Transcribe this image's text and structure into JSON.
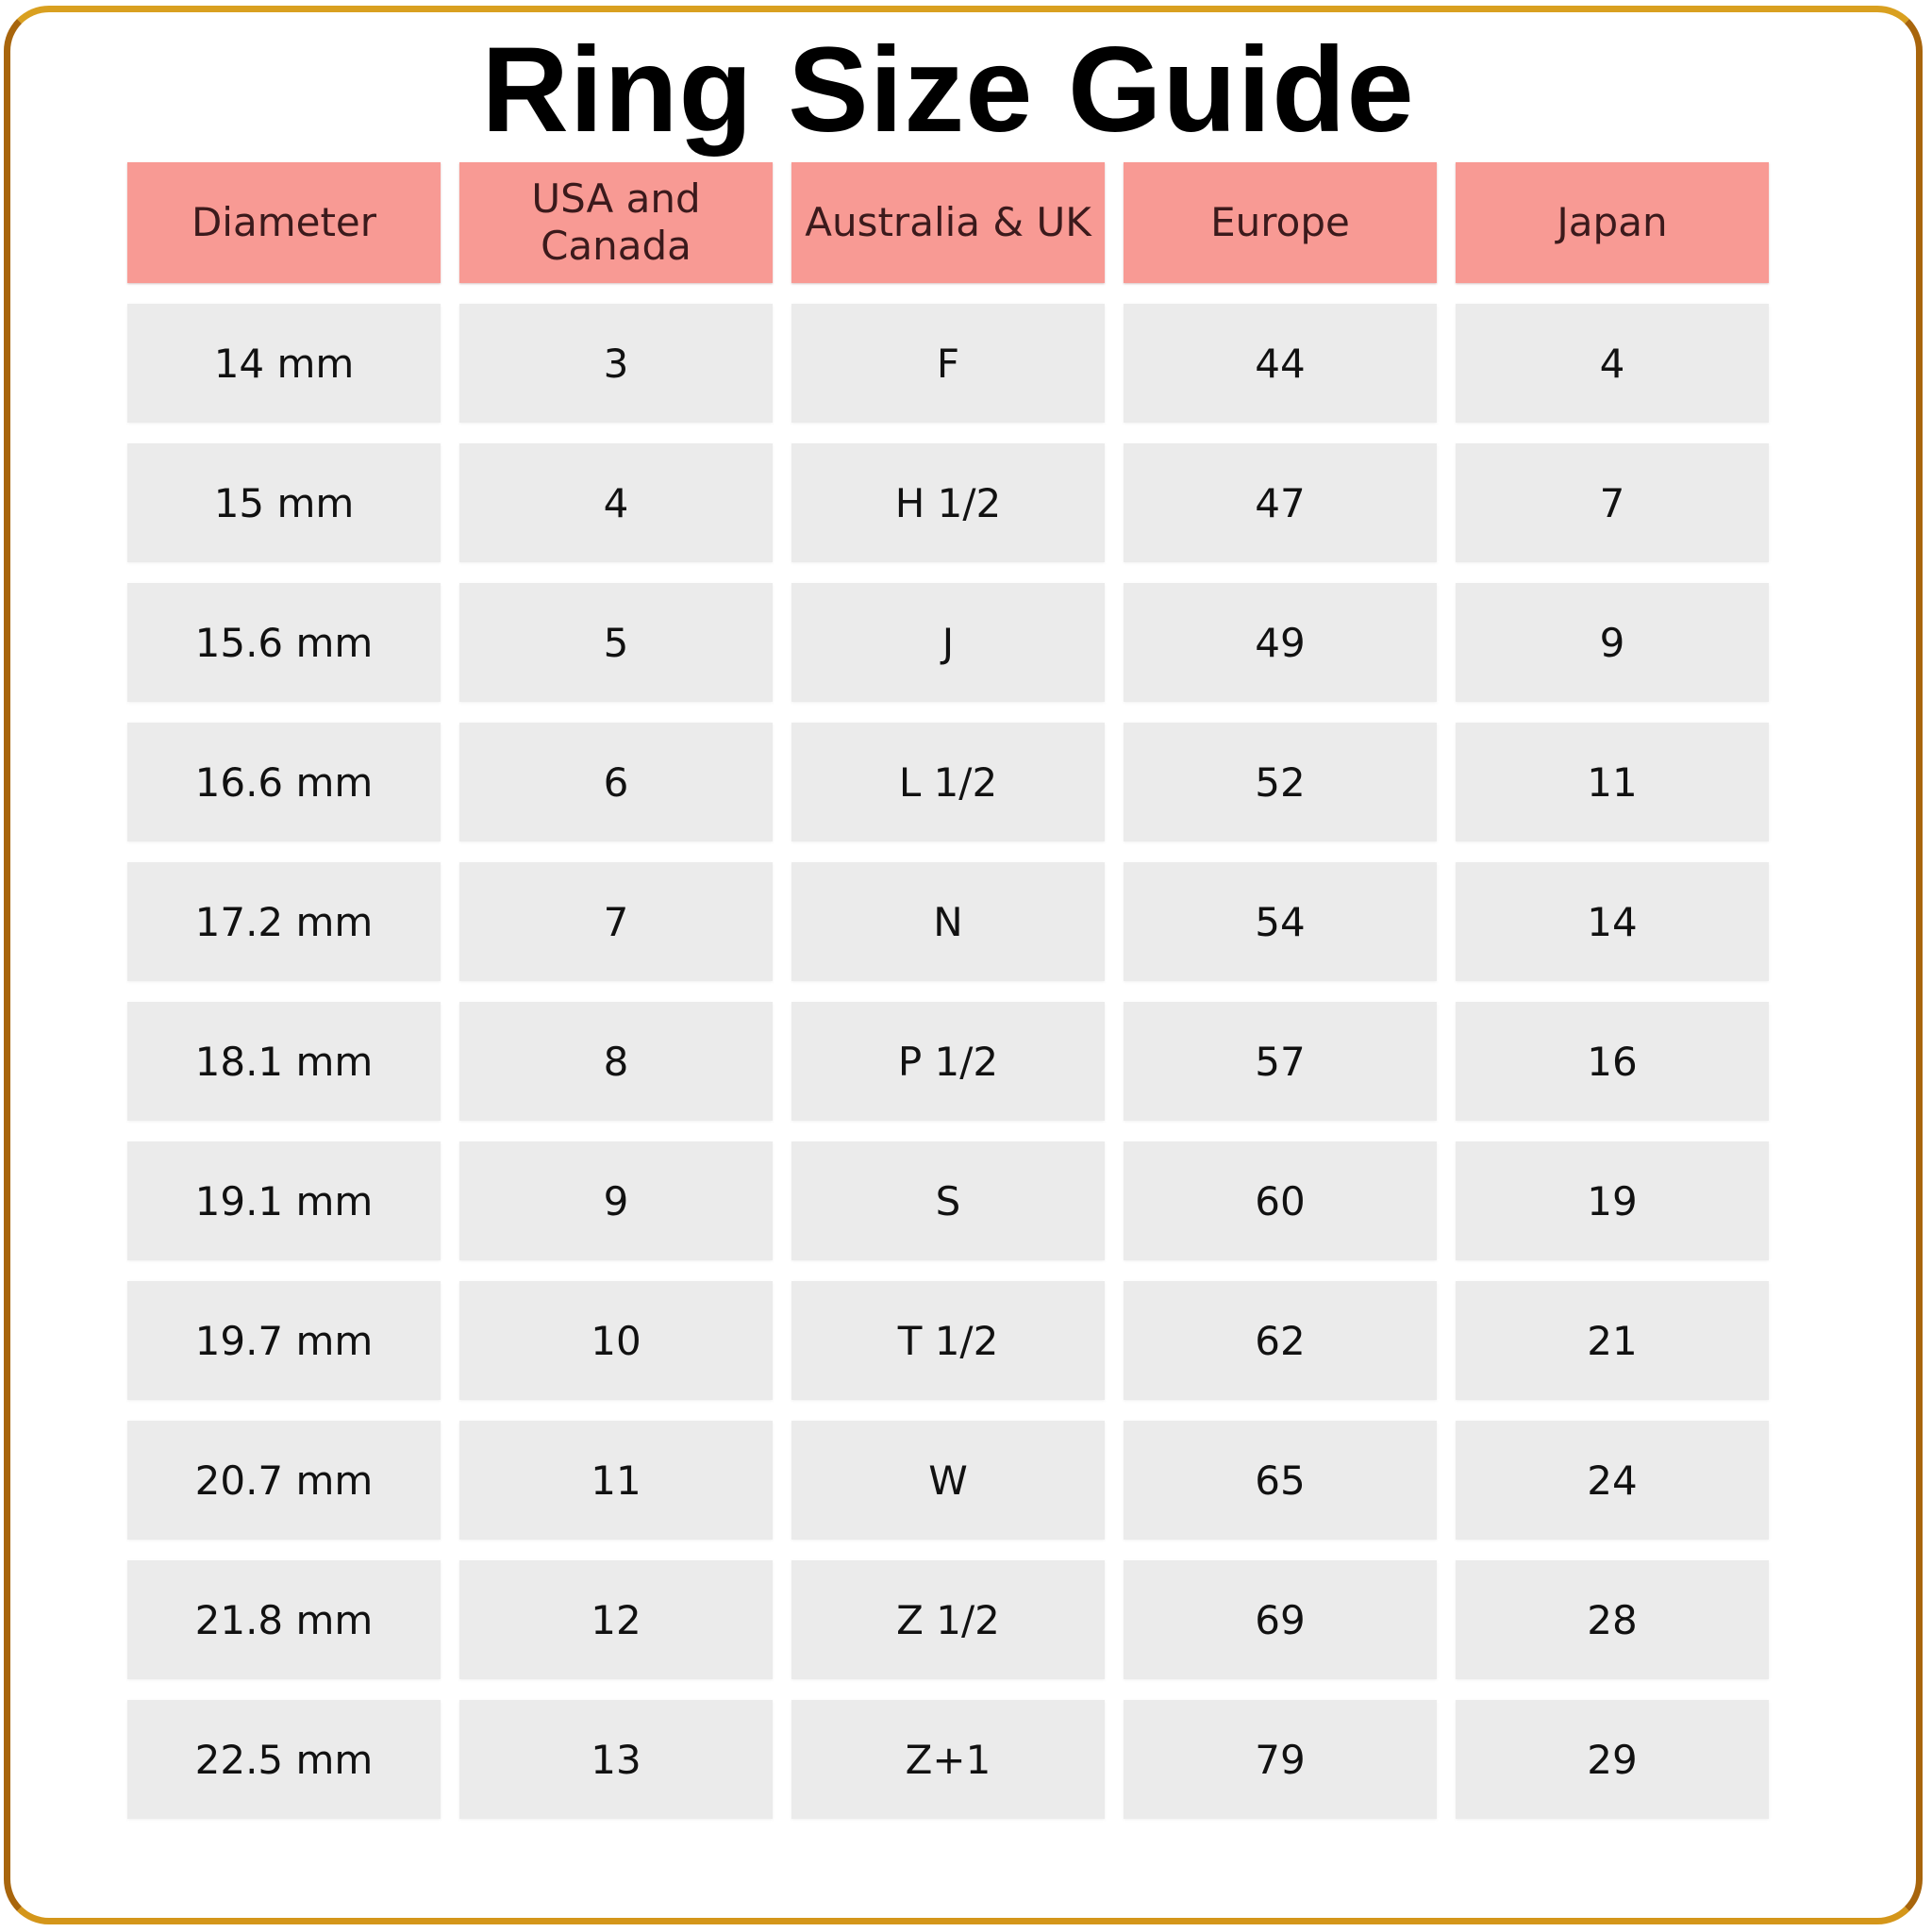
{
  "title": "Ring Size Guide",
  "colors": {
    "border": "#b8780f",
    "header_bg": "#f89a94",
    "cell_bg": "#ebebeb"
  },
  "table": {
    "headers": [
      "Diameter",
      "USA and Canada",
      "Australia & UK",
      "Europe",
      "Japan"
    ],
    "rows": [
      [
        "14 mm",
        "3",
        "F",
        "44",
        "4"
      ],
      [
        "15 mm",
        "4",
        "H 1/2",
        "47",
        "7"
      ],
      [
        "15.6 mm",
        "5",
        "J",
        "49",
        "9"
      ],
      [
        "16.6 mm",
        "6",
        "L 1/2",
        "52",
        "11"
      ],
      [
        "17.2 mm",
        "7",
        "N",
        "54",
        "14"
      ],
      [
        "18.1 mm",
        "8",
        "P 1/2",
        "57",
        "16"
      ],
      [
        "19.1 mm",
        "9",
        "S",
        "60",
        "19"
      ],
      [
        "19.7 mm",
        "10",
        "T 1/2",
        "62",
        "21"
      ],
      [
        "20.7 mm",
        "11",
        "W",
        "65",
        "24"
      ],
      [
        "21.8 mm",
        "12",
        "Z 1/2",
        "69",
        "28"
      ],
      [
        "22.5 mm",
        "13",
        "Z+1",
        "79",
        "29"
      ]
    ]
  }
}
